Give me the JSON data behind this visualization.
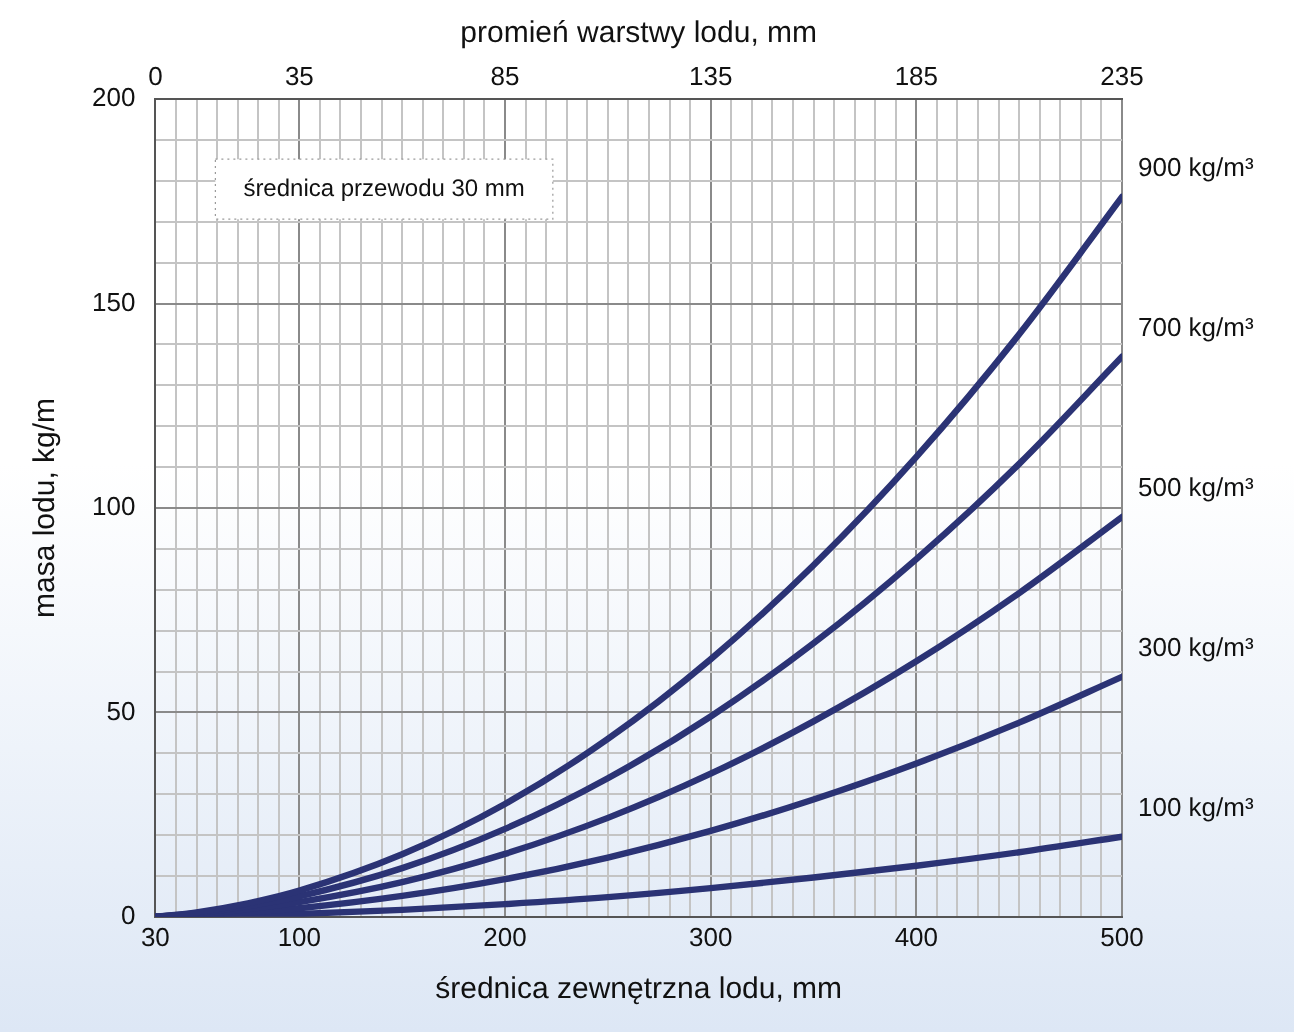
{
  "chart_data": {
    "type": "line",
    "xlabel": "średnica zewnętrzna lodu, mm",
    "x2label": "promień warstwy lodu, mm",
    "ylabel": "masa lodu, kg/m",
    "annotations": [
      "średnica przewodu 30 mm"
    ],
    "x": [
      30,
      50,
      75,
      100,
      150,
      200,
      250,
      300,
      350,
      400,
      450,
      500
    ],
    "xlim": [
      30,
      500
    ],
    "xticks": [
      30,
      {
        "value": 40,
        "label": null
      },
      {
        "value": 50,
        "label": null
      },
      {
        "value": 60,
        "label": null
      },
      {
        "value": 70,
        "label": null
      },
      {
        "value": 80,
        "label": null
      },
      {
        "value": 90,
        "label": null
      },
      100,
      {
        "value": 110,
        "label": null
      },
      {
        "value": 120,
        "label": null
      },
      {
        "value": 130,
        "label": null
      },
      {
        "value": 140,
        "label": null
      },
      {
        "value": 150,
        "label": null
      },
      {
        "value": 160,
        "label": null
      },
      {
        "value": 170,
        "label": null
      },
      {
        "value": 180,
        "label": null
      },
      {
        "value": 190,
        "label": null
      },
      200,
      {
        "value": 210,
        "label": null
      },
      {
        "value": 220,
        "label": null
      },
      {
        "value": 230,
        "label": null
      },
      {
        "value": 240,
        "label": null
      },
      {
        "value": 250,
        "label": null
      },
      {
        "value": 260,
        "label": null
      },
      {
        "value": 270,
        "label": null
      },
      {
        "value": 280,
        "label": null
      },
      {
        "value": 290,
        "label": null
      },
      300,
      {
        "value": 310,
        "label": null
      },
      {
        "value": 320,
        "label": null
      },
      {
        "value": 330,
        "label": null
      },
      {
        "value": 340,
        "label": null
      },
      {
        "value": 350,
        "label": null
      },
      {
        "value": 360,
        "label": null
      },
      {
        "value": 370,
        "label": null
      },
      {
        "value": 380,
        "label": null
      },
      {
        "value": 390,
        "label": null
      },
      400,
      {
        "value": 410,
        "label": null
      },
      {
        "value": 420,
        "label": null
      },
      {
        "value": 430,
        "label": null
      },
      {
        "value": 440,
        "label": null
      },
      {
        "value": 450,
        "label": null
      },
      {
        "value": 460,
        "label": null
      },
      {
        "value": 470,
        "label": null
      },
      {
        "value": 480,
        "label": null
      },
      {
        "value": 490,
        "label": null
      },
      500
    ],
    "x2lim": [
      0,
      235
    ],
    "x2ticks": [
      0,
      35,
      85,
      135,
      185,
      235
    ],
    "ylim": [
      0,
      200
    ],
    "yticks": [
      0,
      {
        "value": 10,
        "label": null
      },
      {
        "value": 20,
        "label": null
      },
      {
        "value": 30,
        "label": null
      },
      {
        "value": 40,
        "label": null
      },
      50,
      {
        "value": 60,
        "label": null
      },
      {
        "value": 70,
        "label": null
      },
      {
        "value": 80,
        "label": null
      },
      {
        "value": 90,
        "label": null
      },
      100,
      {
        "value": 110,
        "label": null
      },
      {
        "value": 120,
        "label": null
      },
      {
        "value": 130,
        "label": null
      },
      {
        "value": 140,
        "label": null
      },
      150,
      {
        "value": 160,
        "label": null
      },
      {
        "value": 170,
        "label": null
      },
      {
        "value": 180,
        "label": null
      },
      {
        "value": 190,
        "label": null
      },
      200
    ],
    "grid": true,
    "legend": false,
    "marker": "none",
    "line_style": "solid",
    "series": [
      {
        "name": "900 kg/m³",
        "color": "#2b3375",
        "values": [
          0,
          1.1,
          3.3,
          6.4,
          15.3,
          27.6,
          43.5,
          63.0,
          86.0,
          112.5,
          142.5,
          176.1
        ]
      },
      {
        "name": "700 kg/m³",
        "color": "#2b3375",
        "values": [
          0,
          0.9,
          2.6,
          5.0,
          11.9,
          21.5,
          33.9,
          49.0,
          66.9,
          87.5,
          110.8,
          137.0
        ]
      },
      {
        "name": "500 kg/m³",
        "color": "#2b3375",
        "values": [
          0,
          0.6,
          1.9,
          3.6,
          8.5,
          15.4,
          24.2,
          35.0,
          47.8,
          62.5,
          79.2,
          97.8
        ]
      },
      {
        "name": "300 kg/m³",
        "color": "#2b3375",
        "values": [
          0,
          0.4,
          1.1,
          2.1,
          5.1,
          9.2,
          14.5,
          21.0,
          28.7,
          37.5,
          47.5,
          58.7
        ]
      },
      {
        "name": "100 kg/m³",
        "color": "#2b3375",
        "values": [
          0,
          0.1,
          0.4,
          0.7,
          1.7,
          3.1,
          4.8,
          7.0,
          9.6,
          12.5,
          15.8,
          19.6
        ]
      }
    ]
  }
}
